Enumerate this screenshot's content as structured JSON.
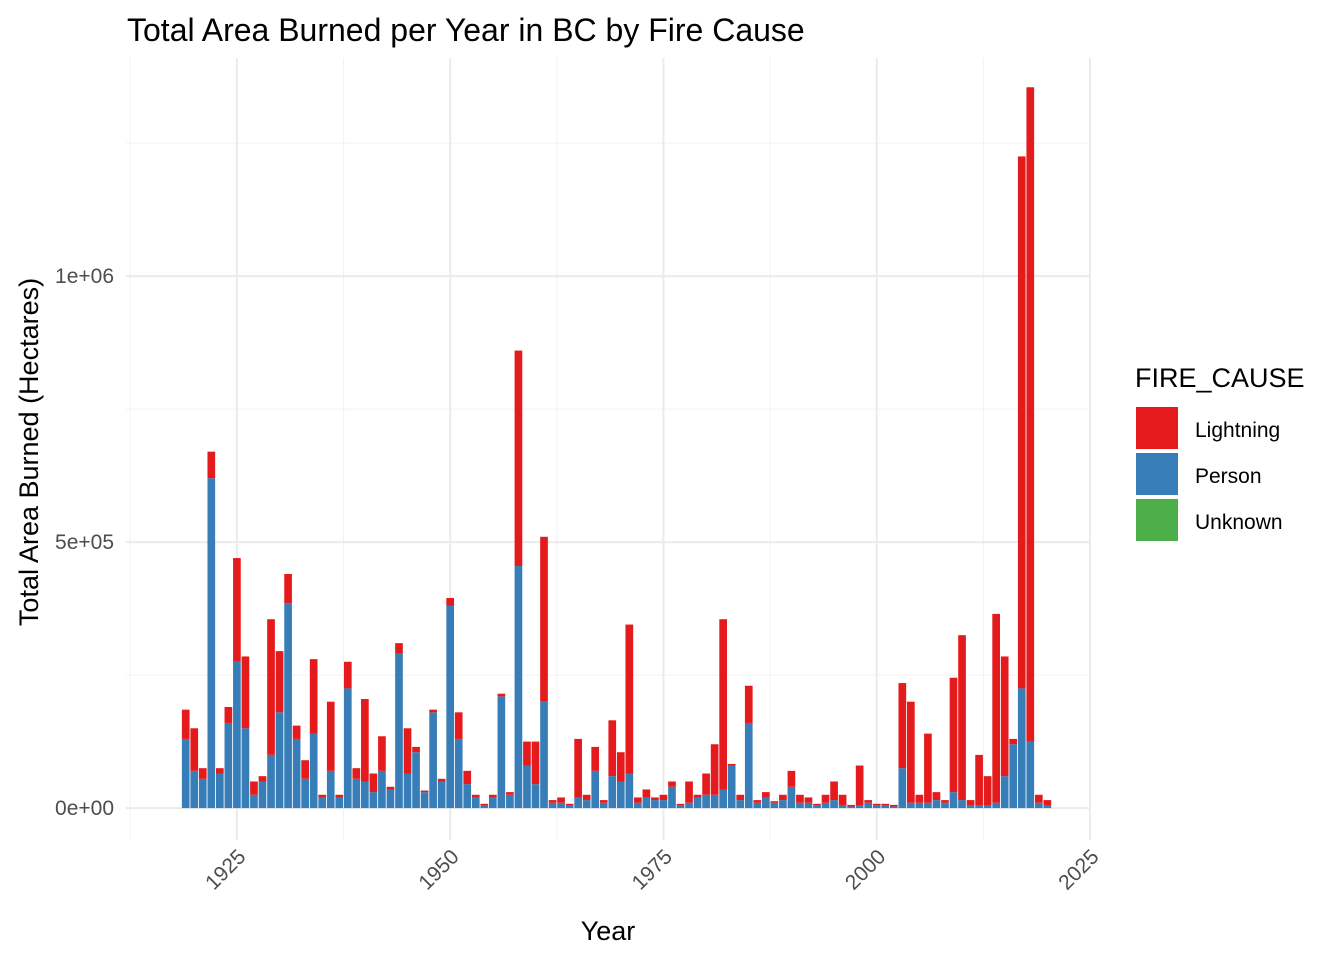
{
  "chart_data": {
    "type": "bar",
    "stacked": true,
    "title": "Total Area Burned per Year in BC by Fire Cause",
    "xlabel": "Year",
    "ylabel": "Total Area Burned (Hectares)",
    "xlim": [
      1912,
      2025
    ],
    "ylim": [
      -60000,
      1410000
    ],
    "x_ticks": [
      1925,
      1950,
      1975,
      2000,
      2025
    ],
    "x_tick_labels": [
      "1925",
      "1950",
      "1975",
      "2000",
      "2025"
    ],
    "y_ticks": [
      0,
      500000,
      1000000
    ],
    "y_tick_labels": [
      "0e+00",
      "5e+05",
      "1e+06"
    ],
    "grid": true,
    "legend": {
      "title": "FIRE_CAUSE",
      "position": "right",
      "entries": [
        {
          "name": "Lightning",
          "color": "#e41a1c"
        },
        {
          "name": "Person",
          "color": "#377eb8"
        },
        {
          "name": "Unknown",
          "color": "#4daf4a"
        }
      ]
    },
    "series": [
      {
        "name": "Person",
        "color": "#377eb8",
        "points": [
          [
            1919,
            130000
          ],
          [
            1920,
            70000
          ],
          [
            1921,
            55000
          ],
          [
            1922,
            620000
          ],
          [
            1923,
            65000
          ],
          [
            1924,
            160000
          ],
          [
            1925,
            275000
          ],
          [
            1926,
            150000
          ],
          [
            1927,
            25000
          ],
          [
            1928,
            50000
          ],
          [
            1929,
            100000
          ],
          [
            1930,
            180000
          ],
          [
            1931,
            385000
          ],
          [
            1932,
            130000
          ],
          [
            1933,
            55000
          ],
          [
            1934,
            140000
          ],
          [
            1935,
            20000
          ],
          [
            1936,
            70000
          ],
          [
            1937,
            20000
          ],
          [
            1938,
            225000
          ],
          [
            1939,
            55000
          ],
          [
            1940,
            50000
          ],
          [
            1941,
            30000
          ],
          [
            1942,
            70000
          ],
          [
            1943,
            35000
          ],
          [
            1944,
            290000
          ],
          [
            1945,
            65000
          ],
          [
            1946,
            105000
          ],
          [
            1947,
            30000
          ],
          [
            1948,
            180000
          ],
          [
            1949,
            50000
          ],
          [
            1950,
            380000
          ],
          [
            1951,
            130000
          ],
          [
            1952,
            45000
          ],
          [
            1953,
            20000
          ],
          [
            1954,
            5000
          ],
          [
            1955,
            20000
          ],
          [
            1956,
            210000
          ],
          [
            1957,
            25000
          ],
          [
            1958,
            455000
          ],
          [
            1959,
            80000
          ],
          [
            1960,
            45000
          ],
          [
            1961,
            200000
          ],
          [
            1962,
            10000
          ],
          [
            1963,
            10000
          ],
          [
            1964,
            5000
          ],
          [
            1965,
            20000
          ],
          [
            1966,
            15000
          ],
          [
            1967,
            70000
          ],
          [
            1968,
            10000
          ],
          [
            1969,
            60000
          ],
          [
            1970,
            50000
          ],
          [
            1971,
            65000
          ],
          [
            1972,
            10000
          ],
          [
            1973,
            20000
          ],
          [
            1974,
            15000
          ],
          [
            1975,
            15000
          ],
          [
            1976,
            40000
          ],
          [
            1977,
            5000
          ],
          [
            1978,
            10000
          ],
          [
            1979,
            20000
          ],
          [
            1980,
            25000
          ],
          [
            1981,
            25000
          ],
          [
            1982,
            35000
          ],
          [
            1983,
            80000
          ],
          [
            1984,
            15000
          ],
          [
            1985,
            160000
          ],
          [
            1986,
            10000
          ],
          [
            1987,
            20000
          ],
          [
            1988,
            10000
          ],
          [
            1989,
            15000
          ],
          [
            1990,
            40000
          ],
          [
            1991,
            10000
          ],
          [
            1992,
            10000
          ],
          [
            1993,
            5000
          ],
          [
            1994,
            10000
          ],
          [
            1995,
            15000
          ],
          [
            1996,
            5000
          ],
          [
            1997,
            3000
          ],
          [
            1998,
            5000
          ],
          [
            1999,
            10000
          ],
          [
            2000,
            5000
          ],
          [
            2001,
            5000
          ],
          [
            2002,
            3000
          ],
          [
            2003,
            75000
          ],
          [
            2004,
            10000
          ],
          [
            2005,
            10000
          ],
          [
            2006,
            10000
          ],
          [
            2007,
            15000
          ],
          [
            2008,
            10000
          ],
          [
            2009,
            30000
          ],
          [
            2010,
            15000
          ],
          [
            2011,
            5000
          ],
          [
            2012,
            5000
          ],
          [
            2013,
            5000
          ],
          [
            2014,
            10000
          ],
          [
            2015,
            60000
          ],
          [
            2016,
            120000
          ],
          [
            2017,
            225000
          ],
          [
            2018,
            125000
          ],
          [
            2019,
            10000
          ],
          [
            2020,
            5000
          ]
        ]
      },
      {
        "name": "Lightning",
        "color": "#e41a1c",
        "points": [
          [
            1919,
            55000
          ],
          [
            1920,
            80000
          ],
          [
            1921,
            20000
          ],
          [
            1922,
            50000
          ],
          [
            1923,
            10000
          ],
          [
            1924,
            30000
          ],
          [
            1925,
            195000
          ],
          [
            1926,
            135000
          ],
          [
            1927,
            25000
          ],
          [
            1928,
            10000
          ],
          [
            1929,
            255000
          ],
          [
            1930,
            115000
          ],
          [
            1931,
            55000
          ],
          [
            1932,
            25000
          ],
          [
            1933,
            35000
          ],
          [
            1934,
            140000
          ],
          [
            1935,
            5000
          ],
          [
            1936,
            130000
          ],
          [
            1937,
            5000
          ],
          [
            1938,
            50000
          ],
          [
            1939,
            20000
          ],
          [
            1940,
            155000
          ],
          [
            1941,
            35000
          ],
          [
            1942,
            65000
          ],
          [
            1943,
            5000
          ],
          [
            1944,
            20000
          ],
          [
            1945,
            85000
          ],
          [
            1946,
            10000
          ],
          [
            1947,
            3000
          ],
          [
            1948,
            5000
          ],
          [
            1949,
            5000
          ],
          [
            1950,
            15000
          ],
          [
            1951,
            50000
          ],
          [
            1952,
            25000
          ],
          [
            1953,
            5000
          ],
          [
            1954,
            3000
          ],
          [
            1955,
            5000
          ],
          [
            1956,
            5000
          ],
          [
            1957,
            5000
          ],
          [
            1958,
            405000
          ],
          [
            1959,
            45000
          ],
          [
            1960,
            80000
          ],
          [
            1961,
            310000
          ],
          [
            1962,
            5000
          ],
          [
            1963,
            10000
          ],
          [
            1964,
            3000
          ],
          [
            1965,
            110000
          ],
          [
            1966,
            10000
          ],
          [
            1967,
            45000
          ],
          [
            1968,
            5000
          ],
          [
            1969,
            105000
          ],
          [
            1970,
            55000
          ],
          [
            1971,
            280000
          ],
          [
            1972,
            10000
          ],
          [
            1973,
            15000
          ],
          [
            1974,
            5000
          ],
          [
            1975,
            10000
          ],
          [
            1976,
            10000
          ],
          [
            1977,
            3000
          ],
          [
            1978,
            40000
          ],
          [
            1979,
            5000
          ],
          [
            1980,
            40000
          ],
          [
            1981,
            95000
          ],
          [
            1982,
            320000
          ],
          [
            1983,
            3000
          ],
          [
            1984,
            10000
          ],
          [
            1985,
            70000
          ],
          [
            1986,
            5000
          ],
          [
            1987,
            10000
          ],
          [
            1988,
            3000
          ],
          [
            1989,
            10000
          ],
          [
            1990,
            30000
          ],
          [
            1991,
            15000
          ],
          [
            1992,
            10000
          ],
          [
            1993,
            3000
          ],
          [
            1994,
            15000
          ],
          [
            1995,
            35000
          ],
          [
            1996,
            20000
          ],
          [
            1997,
            3000
          ],
          [
            1998,
            75000
          ],
          [
            1999,
            5000
          ],
          [
            2000,
            3000
          ],
          [
            2001,
            3000
          ],
          [
            2002,
            3000
          ],
          [
            2003,
            160000
          ],
          [
            2004,
            190000
          ],
          [
            2005,
            15000
          ],
          [
            2006,
            130000
          ],
          [
            2007,
            15000
          ],
          [
            2008,
            5000
          ],
          [
            2009,
            215000
          ],
          [
            2010,
            310000
          ],
          [
            2011,
            10000
          ],
          [
            2012,
            95000
          ],
          [
            2013,
            55000
          ],
          [
            2014,
            355000
          ],
          [
            2015,
            225000
          ],
          [
            2016,
            10000
          ],
          [
            2017,
            1000000
          ],
          [
            2018,
            1230000
          ],
          [
            2019,
            15000
          ],
          [
            2020,
            10000
          ]
        ]
      },
      {
        "name": "Unknown",
        "color": "#4daf4a",
        "points": []
      }
    ]
  }
}
